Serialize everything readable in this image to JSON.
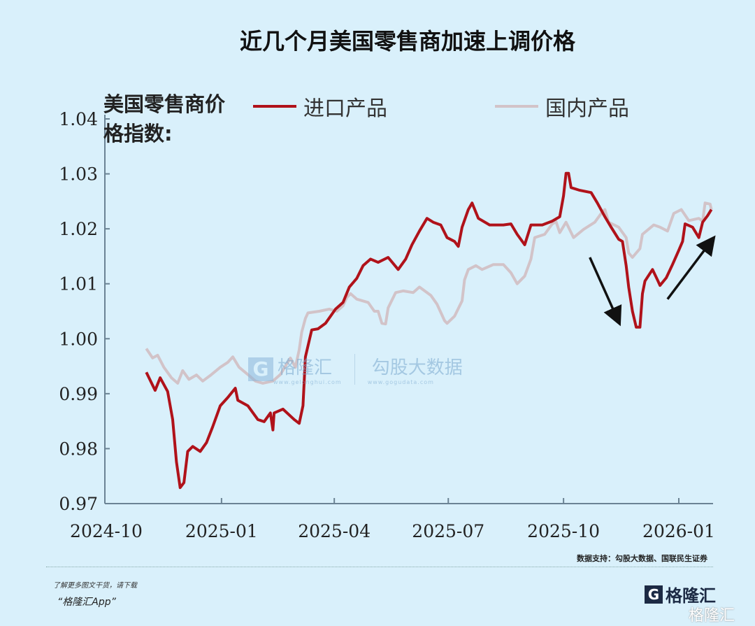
{
  "title": "近几个月美国零售商加速上调价格",
  "y_label": "美国零售商价格指数:",
  "footer": {
    "source": "数据支持：勾股大数据、国联民生证券",
    "promo_line1": "了解更多图文干货，请下载",
    "promo_line2": "“格隆汇App”",
    "logo_text": "格隆汇",
    "logo_url": "www.gelonghui.com",
    "corner_logo": "格隆汇"
  },
  "watermark": {
    "brand": "格隆汇",
    "brand_url": "www.gelonghui.com",
    "data_brand": "勾股大数据",
    "data_url": "www.gogudata.com"
  },
  "colors": {
    "background": "#d9f0fb",
    "import": "#b0121a",
    "domestic": "#d2c3c8",
    "axis": "#6b8394",
    "arrow": "#111111"
  },
  "chart_data": {
    "type": "line",
    "title": "近几个月美国零售商加速上调价格",
    "ylabel": "美国零售商价格指数:",
    "ylim": [
      0.97,
      1.04
    ],
    "xlim": [
      "2024-10-01",
      "2026-01-31"
    ],
    "y_ticks": [
      "1.04",
      "1.03",
      "1.02",
      "1.01",
      "1.00",
      "0.99",
      "0.98",
      "0.97"
    ],
    "x_ticks": [
      "2024-10",
      "2025-01",
      "2025-04",
      "2025-07",
      "2025-10",
      "2026-01"
    ],
    "grid": false,
    "legend_position": "top",
    "series": [
      {
        "name": "进口产品",
        "color": "#b0121a",
        "points": [
          [
            "2024-11-02",
            0.9939
          ],
          [
            "2024-11-09",
            0.9906
          ],
          [
            "2024-11-13",
            0.9929
          ],
          [
            "2024-11-19",
            0.9904
          ],
          [
            "2024-11-23",
            0.9853
          ],
          [
            "2024-11-26",
            0.9776
          ],
          [
            "2024-11-29",
            0.9729
          ],
          [
            "2024-12-02",
            0.9738
          ],
          [
            "2024-12-05",
            0.9795
          ],
          [
            "2024-12-09",
            0.9804
          ],
          [
            "2024-12-15",
            0.9795
          ],
          [
            "2024-12-20",
            0.9811
          ],
          [
            "2024-12-25",
            0.984
          ],
          [
            "2024-12-31",
            0.9878
          ],
          [
            "2025-01-06",
            0.9893
          ],
          [
            "2025-01-12",
            0.991
          ],
          [
            "2025-01-14",
            0.9888
          ],
          [
            "2025-01-22",
            0.9878
          ],
          [
            "2025-01-30",
            0.9853
          ],
          [
            "2025-02-04",
            0.9849
          ],
          [
            "2025-02-09",
            0.9865
          ],
          [
            "2025-02-11",
            0.9834
          ],
          [
            "2025-02-12",
            0.9865
          ],
          [
            "2025-02-19",
            0.9872
          ],
          [
            "2025-02-28",
            0.9853
          ],
          [
            "2025-03-04",
            0.9846
          ],
          [
            "2025-03-07",
            0.9878
          ],
          [
            "2025-03-09",
            0.9967
          ],
          [
            "2025-03-14",
            1.0016
          ],
          [
            "2025-03-19",
            1.0018
          ],
          [
            "2025-03-25",
            1.0028
          ],
          [
            "2025-04-02",
            1.0054
          ],
          [
            "2025-04-08",
            1.0066
          ],
          [
            "2025-04-13",
            1.0094
          ],
          [
            "2025-04-19",
            1.011
          ],
          [
            "2025-04-24",
            1.0133
          ],
          [
            "2025-04-30",
            1.0145
          ],
          [
            "2025-05-06",
            1.0139
          ],
          [
            "2025-05-14",
            1.0148
          ],
          [
            "2025-05-22",
            1.0126
          ],
          [
            "2025-05-28",
            1.0145
          ],
          [
            "2025-06-02",
            1.0171
          ],
          [
            "2025-06-08",
            1.0196
          ],
          [
            "2025-06-14",
            1.0219
          ],
          [
            "2025-06-19",
            1.0212
          ],
          [
            "2025-06-25",
            1.0207
          ],
          [
            "2025-06-30",
            1.0184
          ],
          [
            "2025-07-06",
            1.0177
          ],
          [
            "2025-07-09",
            1.0168
          ],
          [
            "2025-07-12",
            1.0203
          ],
          [
            "2025-07-17",
            1.0235
          ],
          [
            "2025-07-20",
            1.0247
          ],
          [
            "2025-07-25",
            1.0219
          ],
          [
            "2025-08-03",
            1.0207
          ],
          [
            "2025-08-14",
            1.0207
          ],
          [
            "2025-08-20",
            1.0209
          ],
          [
            "2025-08-25",
            1.019
          ],
          [
            "2025-08-31",
            1.0171
          ],
          [
            "2025-09-05",
            1.0207
          ],
          [
            "2025-09-14",
            1.0207
          ],
          [
            "2025-09-22",
            1.0214
          ],
          [
            "2025-09-28",
            1.0222
          ],
          [
            "2025-10-01",
            1.026
          ],
          [
            "2025-10-03",
            1.0301
          ],
          [
            "2025-10-05",
            1.0301
          ],
          [
            "2025-10-07",
            1.0275
          ],
          [
            "2025-10-14",
            1.027
          ],
          [
            "2025-10-23",
            1.0266
          ],
          [
            "2025-10-28",
            1.0247
          ],
          [
            "2025-11-03",
            1.0222
          ],
          [
            "2025-11-08",
            1.0203
          ],
          [
            "2025-11-14",
            1.0181
          ],
          [
            "2025-11-17",
            1.0177
          ],
          [
            "2025-11-20",
            1.0133
          ],
          [
            "2025-11-22",
            1.0094
          ],
          [
            "2025-11-25",
            1.005
          ],
          [
            "2025-11-28",
            1.0021
          ],
          [
            "2025-12-01",
            1.0021
          ],
          [
            "2025-12-03",
            1.0082
          ],
          [
            "2025-12-05",
            1.0105
          ],
          [
            "2025-12-11",
            1.0126
          ],
          [
            "2025-12-15",
            1.0107
          ],
          [
            "2025-12-17",
            1.0097
          ],
          [
            "2025-12-22",
            1.0111
          ],
          [
            "2025-12-27",
            1.0135
          ],
          [
            "2026-01-01",
            1.0161
          ],
          [
            "2026-01-04",
            1.0177
          ],
          [
            "2026-01-06",
            1.0209
          ],
          [
            "2026-01-12",
            1.0203
          ],
          [
            "2026-01-17",
            1.0184
          ],
          [
            "2026-01-20",
            1.0212
          ],
          [
            "2026-01-24",
            1.0224
          ],
          [
            "2026-01-27",
            1.0235
          ]
        ]
      },
      {
        "name": "国内产品",
        "color": "#d2c3c8",
        "points": [
          [
            "2024-11-02",
            0.9982
          ],
          [
            "2024-11-07",
            0.9965
          ],
          [
            "2024-11-11",
            0.997
          ],
          [
            "2024-11-16",
            0.9948
          ],
          [
            "2024-11-22",
            0.9929
          ],
          [
            "2024-11-27",
            0.9919
          ],
          [
            "2024-12-01",
            0.9942
          ],
          [
            "2024-12-06",
            0.9926
          ],
          [
            "2024-12-12",
            0.9934
          ],
          [
            "2024-12-17",
            0.9923
          ],
          [
            "2024-12-23",
            0.9933
          ],
          [
            "2024-12-31",
            0.9948
          ],
          [
            "2025-01-06",
            0.9957
          ],
          [
            "2025-01-10",
            0.9967
          ],
          [
            "2025-01-15",
            0.9948
          ],
          [
            "2025-01-22",
            0.9935
          ],
          [
            "2025-01-28",
            0.9923
          ],
          [
            "2025-02-03",
            0.9919
          ],
          [
            "2025-02-11",
            0.9923
          ],
          [
            "2025-02-17",
            0.9935
          ],
          [
            "2025-02-22",
            0.9954
          ],
          [
            "2025-02-25",
            0.9965
          ],
          [
            "2025-03-01",
            0.9948
          ],
          [
            "2025-03-04",
            0.998
          ],
          [
            "2025-03-06",
            1.0012
          ],
          [
            "2025-03-09",
            1.0037
          ],
          [
            "2025-03-11",
            1.0047
          ],
          [
            "2025-03-20",
            1.005
          ],
          [
            "2025-03-28",
            1.0054
          ],
          [
            "2025-04-03",
            1.005
          ],
          [
            "2025-04-08",
            1.006
          ],
          [
            "2025-04-11",
            1.0075
          ],
          [
            "2025-04-14",
            1.0082
          ],
          [
            "2025-04-19",
            1.0072
          ],
          [
            "2025-04-28",
            1.0066
          ],
          [
            "2025-05-03",
            1.005
          ],
          [
            "2025-05-06",
            1.005
          ],
          [
            "2025-05-09",
            1.0028
          ],
          [
            "2025-05-12",
            1.0027
          ],
          [
            "2025-05-14",
            1.0056
          ],
          [
            "2025-05-20",
            1.0084
          ],
          [
            "2025-05-26",
            1.0087
          ],
          [
            "2025-06-03",
            1.0084
          ],
          [
            "2025-06-08",
            1.0094
          ],
          [
            "2025-06-17",
            1.0079
          ],
          [
            "2025-06-22",
            1.0063
          ],
          [
            "2025-06-28",
            1.0033
          ],
          [
            "2025-06-30",
            1.0028
          ],
          [
            "2025-07-06",
            1.0041
          ],
          [
            "2025-07-12",
            1.0069
          ],
          [
            "2025-07-14",
            1.0107
          ],
          [
            "2025-07-17",
            1.0126
          ],
          [
            "2025-07-23",
            1.0133
          ],
          [
            "2025-07-28",
            1.0126
          ],
          [
            "2025-08-06",
            1.0135
          ],
          [
            "2025-08-14",
            1.0135
          ],
          [
            "2025-08-20",
            1.012
          ],
          [
            "2025-08-25",
            1.01
          ],
          [
            "2025-08-31",
            1.0114
          ],
          [
            "2025-09-05",
            1.0145
          ],
          [
            "2025-09-08",
            1.0184
          ],
          [
            "2025-09-16",
            1.019
          ],
          [
            "2025-09-22",
            1.0209
          ],
          [
            "2025-09-25",
            1.0213
          ],
          [
            "2025-09-28",
            1.0193
          ],
          [
            "2025-10-03",
            1.0212
          ],
          [
            "2025-10-09",
            1.0184
          ],
          [
            "2025-10-17",
            1.0199
          ],
          [
            "2025-10-26",
            1.0212
          ],
          [
            "2025-11-01",
            1.0231
          ],
          [
            "2025-11-03",
            1.0235
          ],
          [
            "2025-11-06",
            1.0212
          ],
          [
            "2025-11-14",
            1.0203
          ],
          [
            "2025-11-20",
            1.0184
          ],
          [
            "2025-11-22",
            1.0156
          ],
          [
            "2025-11-25",
            1.0148
          ],
          [
            "2025-12-01",
            1.0164
          ],
          [
            "2025-12-03",
            1.019
          ],
          [
            "2025-12-12",
            1.0207
          ],
          [
            "2025-12-17",
            1.0203
          ],
          [
            "2025-12-23",
            1.0196
          ],
          [
            "2025-12-28",
            1.0228
          ],
          [
            "2026-01-03",
            1.0235
          ],
          [
            "2026-01-09",
            1.0215
          ],
          [
            "2026-01-17",
            1.0219
          ],
          [
            "2026-01-20",
            1.0214
          ],
          [
            "2026-01-22",
            1.0247
          ],
          [
            "2026-01-26",
            1.0245
          ],
          [
            "2026-01-27",
            1.0235
          ]
        ]
      }
    ],
    "annotations": [
      {
        "type": "arrow",
        "direction": "down",
        "from": [
          "2025-10-22",
          1.0148
        ],
        "to": [
          "2025-11-14",
          1.0031
        ]
      },
      {
        "type": "arrow",
        "direction": "up",
        "from": [
          "2025-12-23",
          1.0072
        ],
        "to": [
          "2026-01-28",
          1.0181
        ]
      }
    ]
  }
}
